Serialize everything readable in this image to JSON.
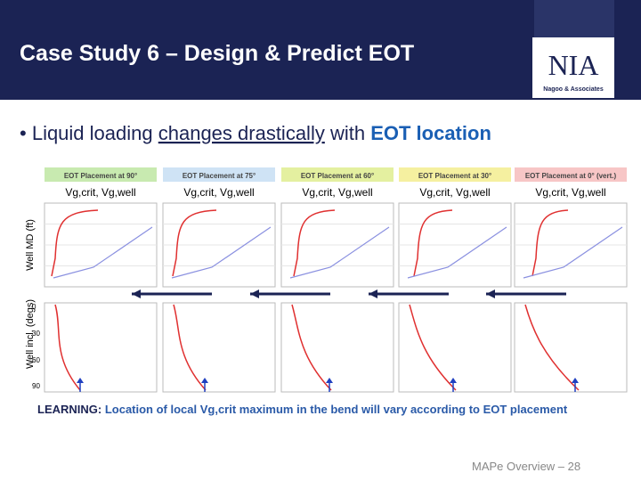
{
  "header": {
    "title": "Case Study 6 – Design & Predict EOT",
    "logo": {
      "mark": "NIA",
      "name": "Nagoo & Associates"
    }
  },
  "bullet": {
    "parts": [
      "Liquid loading ",
      "changes drastically",
      " with ",
      "EOT location"
    ]
  },
  "panels": [
    {
      "title": "EOT Placement at 90°",
      "legend": "Vg,crit, Vg,well"
    },
    {
      "title": "EOT Placement at 75°",
      "legend": "Vg,crit, Vg,well"
    },
    {
      "title": "EOT Placement at 60°",
      "legend": "Vg,crit, Vg,well"
    },
    {
      "title": "EOT Placement at 30°",
      "legend": "Vg,crit, Vg,well"
    },
    {
      "title": "EOT Placement at 0° (vert.)",
      "legend": "Vg,crit, Vg,well"
    }
  ],
  "axes": {
    "upper_label": "Well MD (ft)",
    "lower_label": "Well incl. (degs)",
    "lower_ticks": [
      "0",
      "30",
      "60",
      "90"
    ]
  },
  "learning": {
    "label": "LEARNING:",
    "text": " Location of local Vg,crit maximum in the bend will vary according to EOT placement"
  },
  "footer": "MAPe Overview – 28"
}
